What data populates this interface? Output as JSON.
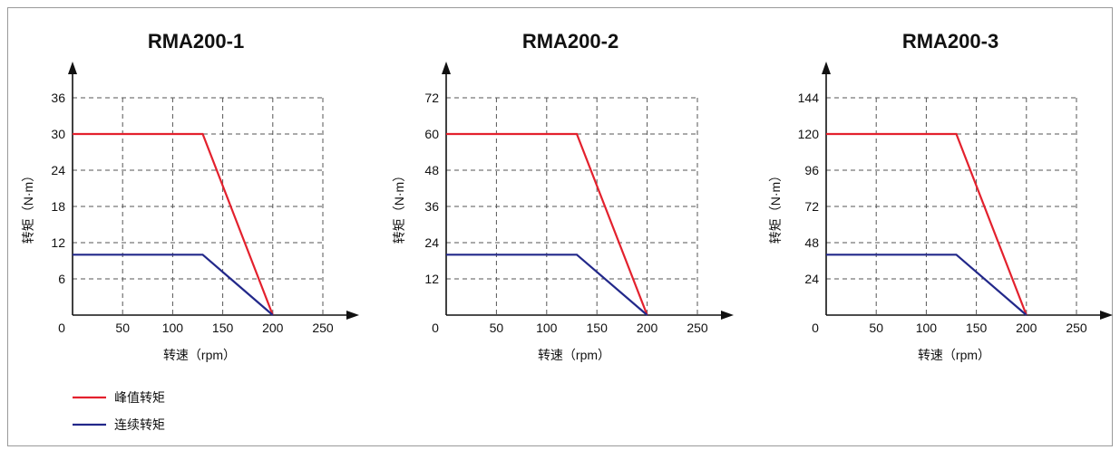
{
  "colors": {
    "peak": "#e3212d",
    "continuous": "#22288a",
    "axis": "#111111",
    "grid": "#555555"
  },
  "legend": {
    "peak_label": "峰值转矩",
    "continuous_label": "连续转矩"
  },
  "chart_data": [
    {
      "type": "line",
      "title": "RMA200-1",
      "xlabel": "转速（rpm）",
      "ylabel": "转矩（N·m）",
      "xlim": [
        0,
        250
      ],
      "ylim": [
        0,
        36
      ],
      "x_ticks": [
        0,
        50,
        100,
        150,
        200,
        250
      ],
      "y_ticks": [
        6,
        12,
        18,
        24,
        30,
        36
      ],
      "grid": true,
      "series": [
        {
          "name": "峰值转矩",
          "x": [
            0,
            130,
            200
          ],
          "y": [
            30,
            30,
            0
          ]
        },
        {
          "name": "连续转矩",
          "x": [
            0,
            130,
            200
          ],
          "y": [
            10,
            10,
            0
          ]
        }
      ]
    },
    {
      "type": "line",
      "title": "RMA200-2",
      "xlabel": "转速（rpm）",
      "ylabel": "转矩（N·m）",
      "xlim": [
        0,
        250
      ],
      "ylim": [
        0,
        72
      ],
      "x_ticks": [
        0,
        50,
        100,
        150,
        200,
        250
      ],
      "y_ticks": [
        12,
        24,
        36,
        48,
        60,
        72
      ],
      "grid": true,
      "series": [
        {
          "name": "峰值转矩",
          "x": [
            0,
            130,
            200
          ],
          "y": [
            60,
            60,
            0
          ]
        },
        {
          "name": "连续转矩",
          "x": [
            0,
            130,
            200
          ],
          "y": [
            20,
            20,
            0
          ]
        }
      ]
    },
    {
      "type": "line",
      "title": "RMA200-3",
      "xlabel": "转速（rpm）",
      "ylabel": "转矩（N·m）",
      "xlim": [
        0,
        250
      ],
      "ylim": [
        0,
        144
      ],
      "x_ticks": [
        0,
        50,
        100,
        150,
        200,
        250
      ],
      "y_ticks": [
        24,
        48,
        72,
        96,
        120,
        144
      ],
      "grid": true,
      "series": [
        {
          "name": "峰值转矩",
          "x": [
            0,
            130,
            200
          ],
          "y": [
            120,
            120,
            0
          ]
        },
        {
          "name": "连续转矩",
          "x": [
            0,
            130,
            200
          ],
          "y": [
            40,
            40,
            0
          ]
        }
      ]
    }
  ]
}
